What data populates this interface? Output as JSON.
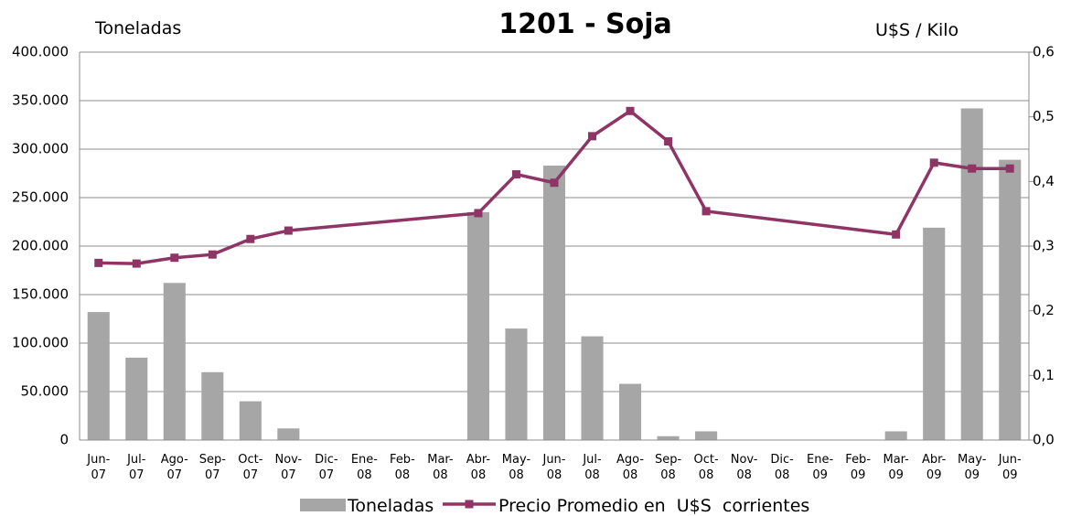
{
  "chart_data": {
    "type": "bar_line",
    "title": "1201 - Soja",
    "y_label": "Toneladas",
    "y2_label": "U$S / Kilo",
    "categories": [
      "Jun-07",
      "Jul-07",
      "Ago-07",
      "Sep-07",
      "Oct-07",
      "Nov-07",
      "Dic-07",
      "Ene-08",
      "Feb-08",
      "Mar-08",
      "Abr-08",
      "May-08",
      "Jun-08",
      "Jul-08",
      "Ago-08",
      "Sep-08",
      "Oct-08",
      "Nov-08",
      "Dic-08",
      "Ene-09",
      "Feb-09",
      "Mar-09",
      "Abr-09",
      "May-09",
      "Jun-09"
    ],
    "series": [
      {
        "name": "Toneladas",
        "type": "bar",
        "color": "#a6a6a6",
        "values": [
          132000,
          85000,
          162000,
          70000,
          40000,
          12000,
          0,
          0,
          0,
          0,
          235000,
          115000,
          283000,
          107000,
          58000,
          4000,
          9000,
          0,
          0,
          0,
          0,
          9000,
          219000,
          342000,
          289000
        ]
      },
      {
        "name": "Precio Promedio en  U$S  corrientes",
        "type": "line",
        "axis": "y2",
        "color": "#8e3566",
        "values": [
          0.274,
          0.273,
          0.282,
          0.287,
          0.311,
          0.324,
          null,
          null,
          null,
          null,
          0.351,
          0.411,
          0.398,
          0.47,
          0.509,
          0.462,
          0.354,
          null,
          null,
          null,
          null,
          0.318,
          0.429,
          0.42,
          0.42
        ]
      }
    ],
    "ylim": [
      0,
      400000
    ],
    "yticks": [
      0,
      {
        "value": 50000,
        "label": "50.000"
      },
      {
        "value": 100000,
        "label": "100.000"
      },
      {
        "value": 150000,
        "label": "150.000"
      },
      {
        "value": 200000,
        "label": "200.000"
      },
      {
        "value": 250000,
        "label": "250.000"
      },
      {
        "value": 300000,
        "label": "300.000"
      },
      {
        "value": 350000,
        "label": "350.000"
      },
      {
        "value": 400000,
        "label": "400.000"
      }
    ],
    "y2lim": [
      0,
      0.6
    ],
    "y2ticks": [
      {
        "value": 0,
        "label": "0,0"
      },
      {
        "value": 0.1,
        "label": "0,1"
      },
      {
        "value": 0.2,
        "label": "0,2"
      },
      {
        "value": 0.3,
        "label": "0,3"
      },
      {
        "value": 0.4,
        "label": "0,4"
      },
      {
        "value": 0.5,
        "label": "0,5"
      },
      {
        "value": 0.6,
        "label": "0,6"
      }
    ],
    "grid": true
  }
}
